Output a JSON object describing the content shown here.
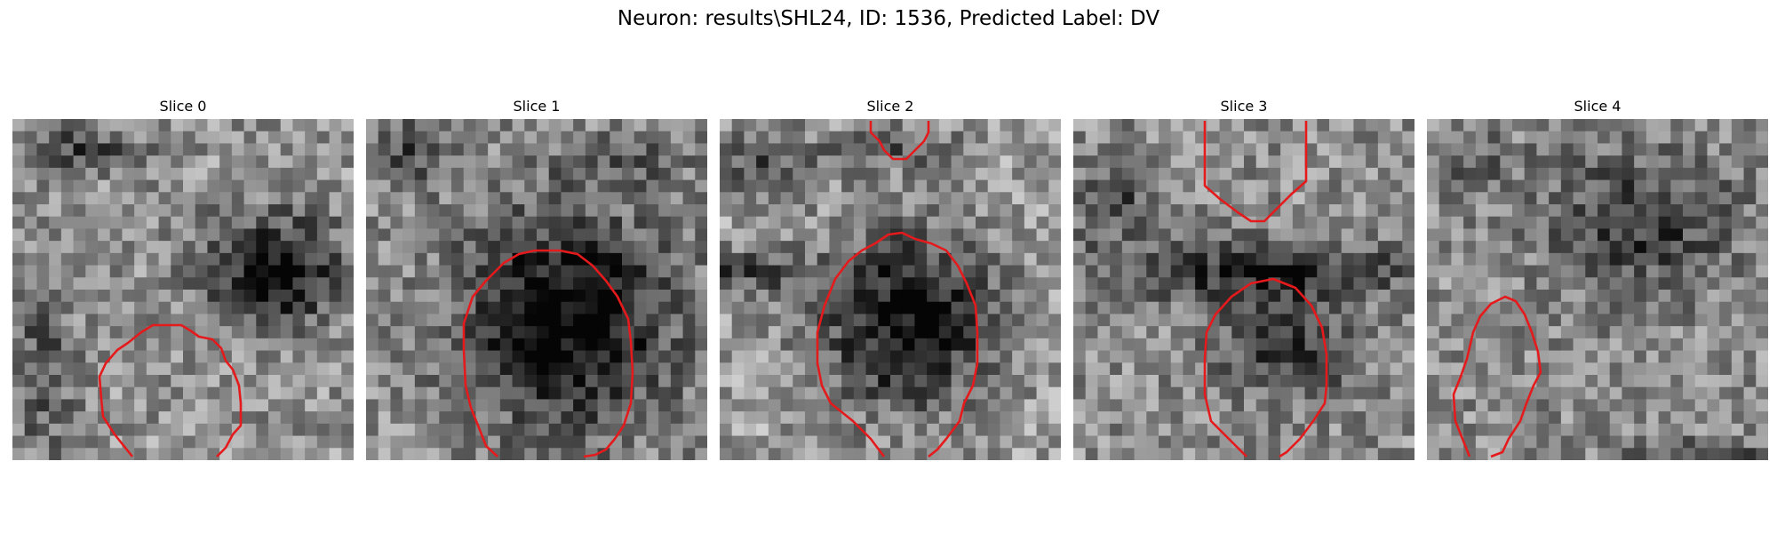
{
  "figure": {
    "title": "Neuron: results\\SHL24, ID: 1536, Predicted Label: DV"
  },
  "slices": [
    {
      "title": "Slice 0"
    },
    {
      "title": "Slice 1"
    },
    {
      "title": "Slice 2"
    },
    {
      "title": "Slice 3"
    },
    {
      "title": "Slice 4"
    }
  ],
  "colors": {
    "contour": "#e41a1c",
    "background": "#ffffff"
  }
}
